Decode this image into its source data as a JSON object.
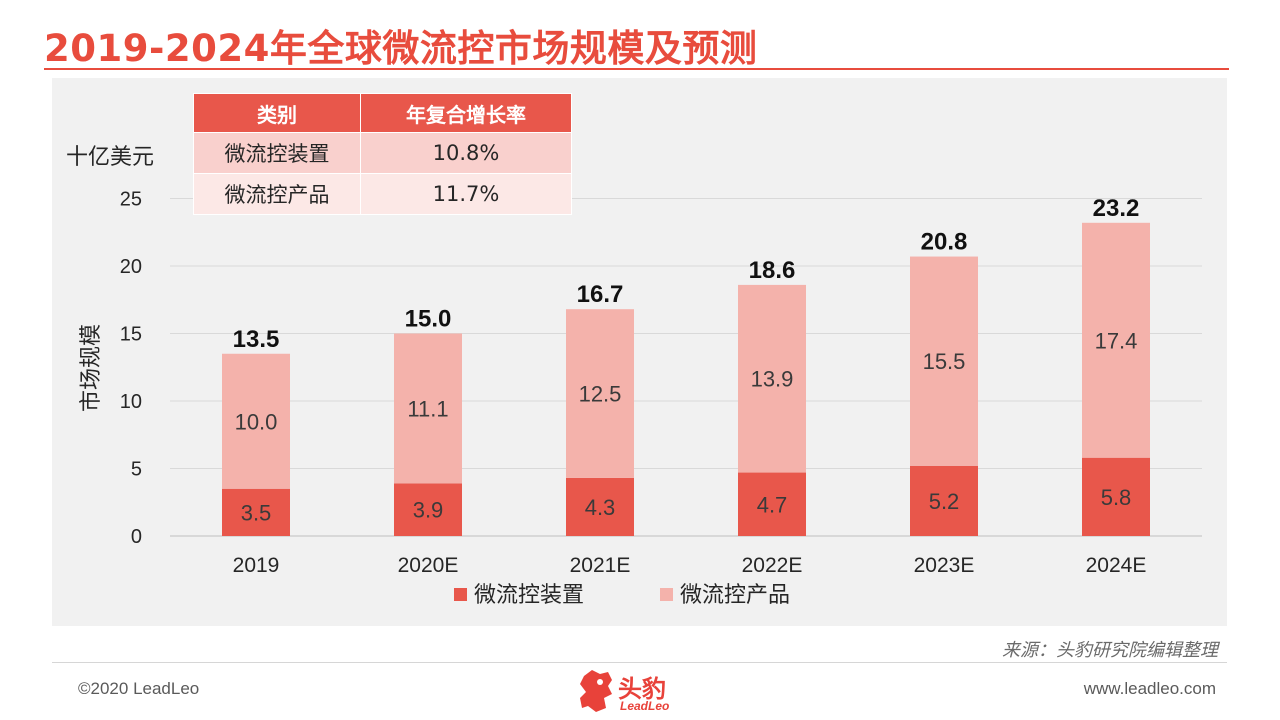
{
  "page": {
    "title": "2019-2024年全球微流控市场规模及预测",
    "source": "来源：头豹研究院编辑整理",
    "copyright": "©2020 LeadLeo",
    "website": "www.leadleo.com",
    "logo_name": "头豹",
    "logo_sub": "LeadLeo"
  },
  "colors": {
    "accent": "#e84c3d",
    "device": "#e8574b",
    "product": "#f4b2ab",
    "panel": "#f1f1f1"
  },
  "table": {
    "headers": [
      "类别",
      "年复合增长率"
    ],
    "rows": [
      [
        "微流控装置",
        "10.8%"
      ],
      [
        "微流控产品",
        "11.7%"
      ]
    ]
  },
  "chart_data": {
    "type": "bar",
    "stacked": true,
    "categories": [
      "2019",
      "2020E",
      "2021E",
      "2022E",
      "2023E",
      "2024E"
    ],
    "series": [
      {
        "name": "微流控装置",
        "values": [
          3.5,
          3.9,
          4.3,
          4.7,
          5.2,
          5.8
        ]
      },
      {
        "name": "微流控产品",
        "values": [
          10.0,
          11.1,
          12.5,
          13.9,
          15.5,
          17.4
        ]
      }
    ],
    "totals": [
      "13.5",
      "15.0",
      "16.7",
      "18.6",
      "20.8",
      "23.2"
    ],
    "value_labels": [
      [
        "3.5",
        "3.9",
        "4.3",
        "4.7",
        "5.2",
        "5.8"
      ],
      [
        "10.0",
        "11.1",
        "12.5",
        "13.9",
        "15.5",
        "17.4"
      ]
    ],
    "unit": "十亿美元",
    "ylabel": "市场规模",
    "ylim": [
      0,
      25
    ],
    "yticks": [
      0,
      5,
      10,
      15,
      20,
      25
    ],
    "grid": true,
    "legend_position": "bottom"
  }
}
